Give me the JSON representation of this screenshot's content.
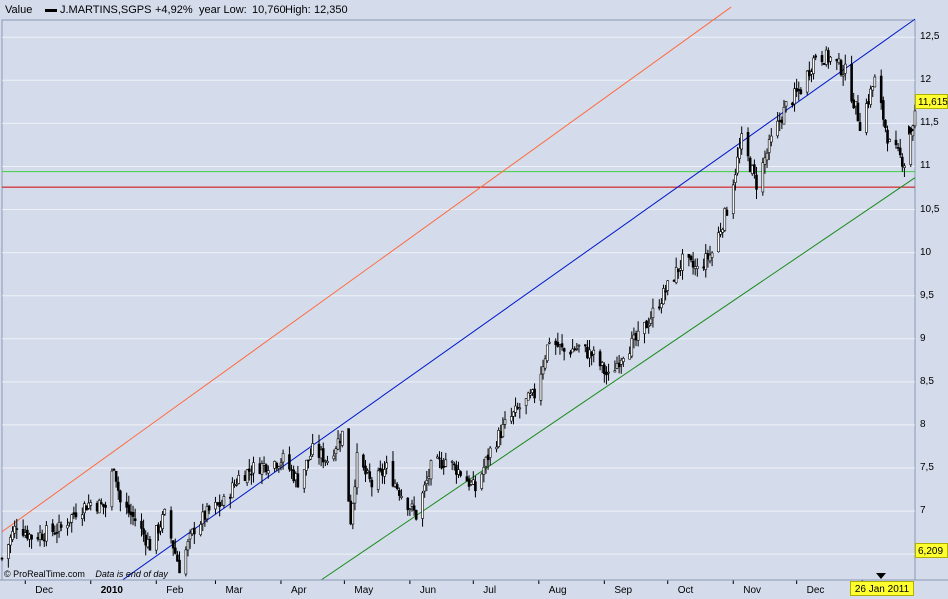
{
  "header": {
    "label": "Value",
    "instrument": "J.MARTINS,SGPS",
    "change": "+4,92%",
    "year_low_label": "year Low:",
    "year_low": "10,760",
    "high_label": "High:",
    "high": "12,350"
  },
  "footer": {
    "copyright": "© ProRealTime.com",
    "note": "Data is end of day"
  },
  "price_tag": "11,615",
  "left_tag": "6,209",
  "date_tag": "26 Jan 2011",
  "colors": {
    "background": "#d4dcec",
    "plot": "#d4dcec",
    "grid": "#ffffff",
    "candle": "#000000",
    "upper_channel": "#ff6a3c",
    "mid_channel": "#0018c8",
    "lower_channel": "#1a8a1a",
    "support": "#d00000",
    "resistance": "#3ccf3c",
    "tag_yellow": "#ffff30"
  },
  "chart_data": {
    "type": "candlestick",
    "title": "J.MARTINS,SGPS",
    "x_tick_labels": [
      "Dec",
      "2010",
      "Feb",
      "Mar",
      "Apr",
      "May",
      "Jun",
      "Jul",
      "Aug",
      "Sep",
      "Oct",
      "Nov",
      "Dec",
      "2011"
    ],
    "y_tick_labels": [
      "12,5",
      "12",
      "11,5",
      "11",
      "10,5",
      "10",
      "9,5",
      "9",
      "8,5",
      "8",
      "7,5",
      "7",
      "6,5"
    ],
    "y_ticks": [
      12.5,
      12,
      11.5,
      11,
      10.5,
      10,
      9.5,
      9,
      8.5,
      8,
      7.5,
      7,
      6.5
    ],
    "ylim": [
      6.2,
      12.7
    ],
    "x_range": [
      "2009-11-20",
      "2011-01-26"
    ],
    "last_close": 11.615,
    "horizontal_lines": [
      {
        "name": "support",
        "value": 10.76,
        "color": "red"
      },
      {
        "name": "resistance",
        "value": 10.94,
        "color": "green"
      }
    ],
    "trend_lines": [
      {
        "name": "upper-channel",
        "from": [
          "2009-11-20",
          6.76
        ],
        "to": [
          "2010-10-31",
          12.85
        ],
        "color": "orange"
      },
      {
        "name": "middle-channel",
        "from": [
          "2010-01-16",
          6.2
        ],
        "to": [
          "2011-01-26",
          12.71
        ],
        "color": "blue"
      },
      {
        "name": "lower-channel",
        "from": [
          "2010-04-20",
          6.2
        ],
        "to": [
          "2011-01-26",
          10.87
        ],
        "color": "green"
      }
    ],
    "series": [
      {
        "type": "ohlc-close-path",
        "x": [
          "2009-11-20",
          "2009-11-27",
          "2009-12-04",
          "2009-12-11",
          "2009-12-18",
          "2009-12-25",
          "2010-01-01",
          "2010-01-08",
          "2010-01-12",
          "2010-01-15",
          "2010-01-22",
          "2010-01-29",
          "2010-02-05",
          "2010-02-09",
          "2010-02-12",
          "2010-02-19",
          "2010-02-26",
          "2010-03-05",
          "2010-03-12",
          "2010-03-19",
          "2010-03-26",
          "2010-04-02",
          "2010-04-09",
          "2010-04-16",
          "2010-04-23",
          "2010-04-30",
          "2010-05-04",
          "2010-05-07",
          "2010-05-14",
          "2010-05-21",
          "2010-05-28",
          "2010-06-04",
          "2010-06-11",
          "2010-06-18",
          "2010-06-25",
          "2010-07-02",
          "2010-07-09",
          "2010-07-16",
          "2010-07-23",
          "2010-07-30",
          "2010-08-06",
          "2010-08-13",
          "2010-08-20",
          "2010-08-27",
          "2010-09-03",
          "2010-09-10",
          "2010-09-17",
          "2010-09-24",
          "2010-10-01",
          "2010-10-08",
          "2010-10-15",
          "2010-10-22",
          "2010-10-29",
          "2010-11-05",
          "2010-11-12",
          "2010-11-19",
          "2010-11-26",
          "2010-12-03",
          "2010-12-10",
          "2010-12-17",
          "2010-12-24",
          "2010-12-31",
          "2011-01-07",
          "2011-01-14",
          "2011-01-21",
          "2011-01-26"
        ],
        "close": [
          6.45,
          6.85,
          6.7,
          6.75,
          6.8,
          7.0,
          7.1,
          7.05,
          7.55,
          7.1,
          6.9,
          6.6,
          6.95,
          6.6,
          6.35,
          6.8,
          7.0,
          7.1,
          7.4,
          7.5,
          7.55,
          7.6,
          7.35,
          7.7,
          7.6,
          7.9,
          6.9,
          7.6,
          7.3,
          7.5,
          7.2,
          6.95,
          7.5,
          7.6,
          7.45,
          7.25,
          7.7,
          8.0,
          8.2,
          8.35,
          9.0,
          8.85,
          8.9,
          8.8,
          8.55,
          8.85,
          9.0,
          9.3,
          9.6,
          9.9,
          9.8,
          10.0,
          10.5,
          11.3,
          10.8,
          11.3,
          11.7,
          11.9,
          12.3,
          12.25,
          12.1,
          11.5,
          12.0,
          11.25,
          11.05,
          11.615
        ]
      }
    ]
  }
}
